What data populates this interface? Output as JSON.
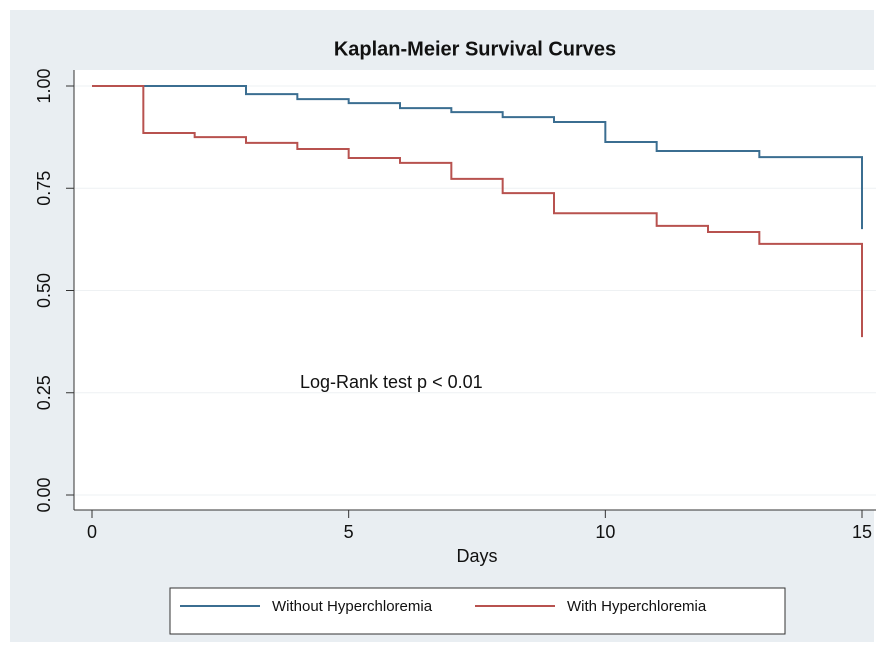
{
  "chart_data": {
    "type": "line",
    "step": "post",
    "title": "Kaplan-Meier Survival Curves",
    "x_label": "Days",
    "annotation": "Log-Rank test p < 0.01",
    "xlim": [
      0,
      15
    ],
    "xticks": [
      0,
      5,
      10,
      15
    ],
    "ylim": [
      0,
      1
    ],
    "yticks": [
      {
        "value": 0,
        "label": "0.00"
      },
      {
        "value": 0.25,
        "label": "0.25"
      },
      {
        "value": 0.5,
        "label": "0.50"
      },
      {
        "value": 0.75,
        "label": "0.75"
      },
      {
        "value": 1,
        "label": "1.00"
      }
    ],
    "grid": true,
    "legend": "bottom",
    "series": [
      {
        "name": "Without Hyperchloremia",
        "color": "#3b6e91",
        "x": [
          0,
          3,
          4,
          5,
          6,
          7,
          8,
          9,
          10,
          11,
          13,
          15,
          15
        ],
        "values": [
          1,
          0.98,
          0.968,
          0.958,
          0.946,
          0.936,
          0.924,
          0.912,
          0.863,
          0.841,
          0.826,
          0.826,
          0.65
        ]
      },
      {
        "name": "With Hyperchloremia",
        "color": "#b8524f",
        "x": [
          0,
          1,
          2,
          3,
          4,
          5,
          6,
          7,
          8,
          9,
          11,
          12,
          13,
          15,
          15
        ],
        "values": [
          1,
          0.885,
          0.875,
          0.861,
          0.846,
          0.824,
          0.812,
          0.773,
          0.738,
          0.689,
          0.658,
          0.643,
          0.614,
          0.614,
          0.386
        ]
      }
    ]
  }
}
